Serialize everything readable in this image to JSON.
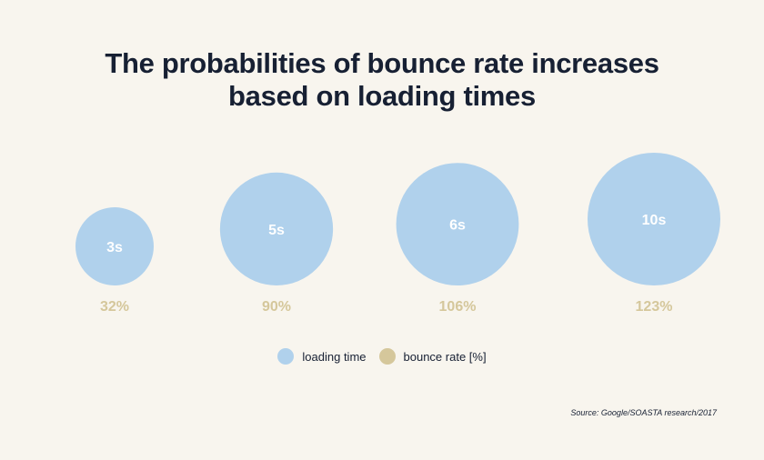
{
  "title": {
    "line1": "The probabilities of bounce rate increases",
    "line2": "based on loading times"
  },
  "chart_data": {
    "type": "bubble",
    "series": [
      {
        "name": "loading time",
        "color": "#b0d1ec",
        "labels": [
          "3s",
          "5s",
          "6s",
          "10s"
        ],
        "values": [
          3,
          5,
          6,
          10
        ]
      },
      {
        "name": "bounce rate [%]",
        "color": "#d5c79b",
        "labels": [
          "32%",
          "90%",
          "106%",
          "123%"
        ],
        "values": [
          32,
          90,
          106,
          123
        ]
      }
    ]
  },
  "legend": {
    "items": [
      {
        "label": "loading time",
        "color": "#b0d1ec"
      },
      {
        "label": "bounce rate [%]",
        "color": "#d5c79b"
      }
    ]
  },
  "source": "Source: Google/SOASTA research/2017"
}
